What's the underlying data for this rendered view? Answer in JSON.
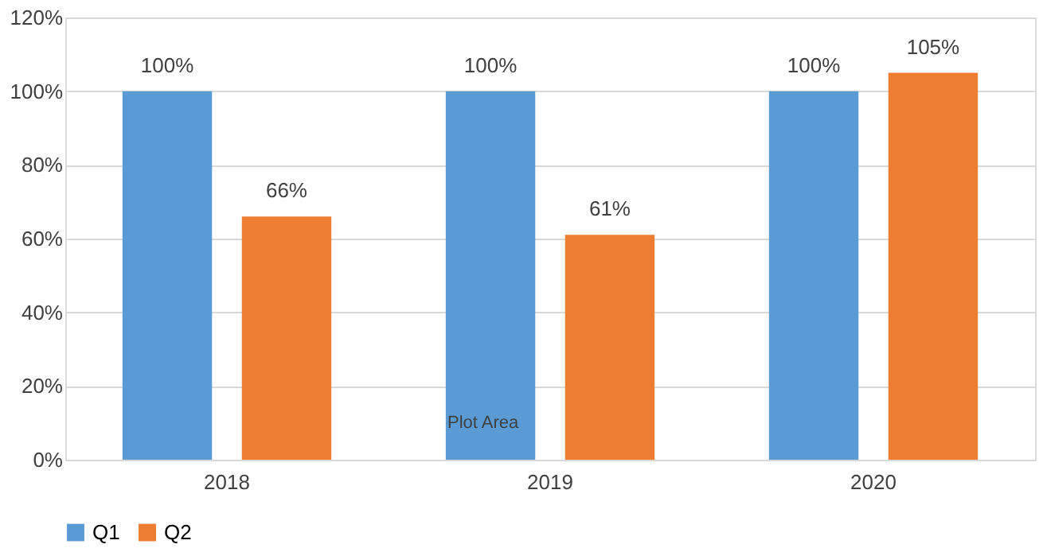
{
  "chart_data": {
    "type": "bar",
    "categories": [
      "2018",
      "2019",
      "2020"
    ],
    "series": [
      {
        "name": "Q1",
        "color": "#5b9bd5",
        "values": [
          100,
          100,
          100
        ],
        "value_labels": [
          "100%",
          "100%",
          "100%"
        ]
      },
      {
        "name": "Q2",
        "color": "#ed7d31",
        "values": [
          66,
          61,
          105
        ],
        "value_labels": [
          "66%",
          "61%",
          "105%"
        ]
      }
    ],
    "ylim": [
      0,
      120
    ],
    "yticks": [
      {
        "value": 0,
        "label": "0%"
      },
      {
        "value": 20,
        "label": "20%"
      },
      {
        "value": 40,
        "label": "40%"
      },
      {
        "value": 60,
        "label": "60%"
      },
      {
        "value": 80,
        "label": "80%"
      },
      {
        "value": 100,
        "label": "100%"
      },
      {
        "value": 120,
        "label": "120%"
      }
    ],
    "grid": "y",
    "legend": "bottom",
    "annotations": [
      "Plot Area"
    ]
  }
}
